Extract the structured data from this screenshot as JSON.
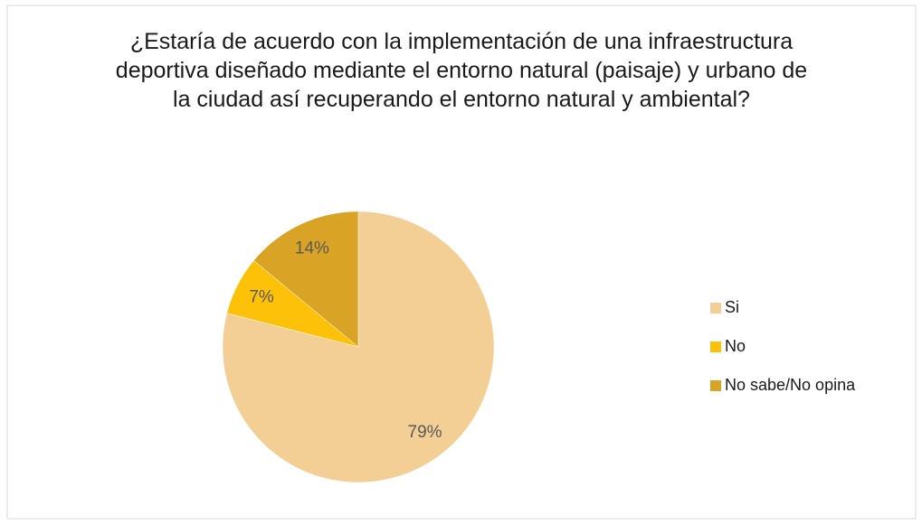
{
  "chart_data": {
    "type": "pie",
    "title": "¿Estaría de acuerdo con la implementación de una infraestructura deportiva diseñado mediante el entorno natural (paisaje) y urbano de la ciudad así recuperando el entorno natural y ambiental?",
    "categories": [
      "Si",
      "No",
      "No sabe/No opina"
    ],
    "values": [
      79,
      7,
      14
    ],
    "value_labels": [
      "79%",
      "7%",
      "14%"
    ],
    "colors": [
      "#f3cf95",
      "#fdc10a",
      "#d9a325"
    ],
    "legend": "right"
  }
}
